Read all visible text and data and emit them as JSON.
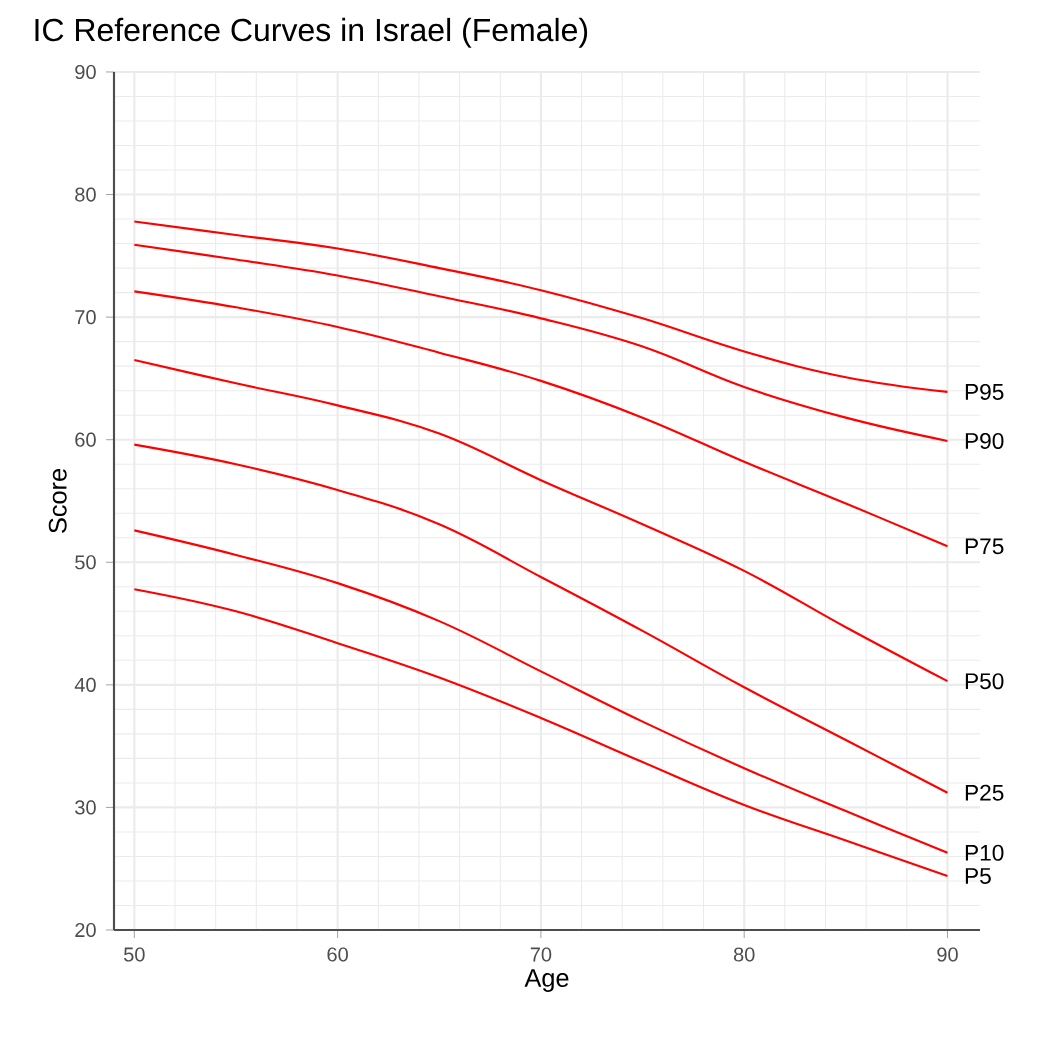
{
  "chart_data": {
    "type": "line",
    "title": "IC Reference Curves in Israel (Female)",
    "xlabel": "Age",
    "ylabel": "Score",
    "x": [
      50,
      55,
      60,
      65,
      70,
      75,
      80,
      85,
      90
    ],
    "xlim": [
      49,
      91.6
    ],
    "ylim": [
      20,
      90
    ],
    "xticks": [
      50,
      60,
      70,
      80,
      90
    ],
    "yticks": [
      20,
      30,
      40,
      50,
      60,
      70,
      80,
      90
    ],
    "grid": true,
    "marker": "none",
    "line_style": "solid",
    "series": [
      {
        "name": "P95",
        "color": "#ff0000",
        "values": [
          77.8,
          76.7,
          75.6,
          74.0,
          72.2,
          69.9,
          67.2,
          65.1,
          63.9
        ]
      },
      {
        "name": "P90",
        "color": "#ff0000",
        "values": [
          75.9,
          74.7,
          73.4,
          71.7,
          69.9,
          67.6,
          64.3,
          61.8,
          59.9
        ]
      },
      {
        "name": "P75",
        "color": "#ff0000",
        "values": [
          72.1,
          70.8,
          69.2,
          67.1,
          64.8,
          61.8,
          58.2,
          54.8,
          51.3
        ]
      },
      {
        "name": "P50",
        "color": "#ff0000",
        "values": [
          66.5,
          64.6,
          62.8,
          60.5,
          56.7,
          53.1,
          49.3,
          44.7,
          40.3
        ]
      },
      {
        "name": "P25",
        "color": "#ff0000",
        "values": [
          59.6,
          58.0,
          55.9,
          53.1,
          48.8,
          44.4,
          39.8,
          35.5,
          31.2
        ]
      },
      {
        "name": "P10",
        "color": "#ff0000",
        "values": [
          52.6,
          50.6,
          48.3,
          45.2,
          41.1,
          37.0,
          33.2,
          29.7,
          26.3
        ]
      },
      {
        "name": "P5",
        "color": "#ff0000",
        "values": [
          47.8,
          46.0,
          43.4,
          40.6,
          37.3,
          33.7,
          30.2,
          27.3,
          24.4
        ]
      }
    ]
  }
}
